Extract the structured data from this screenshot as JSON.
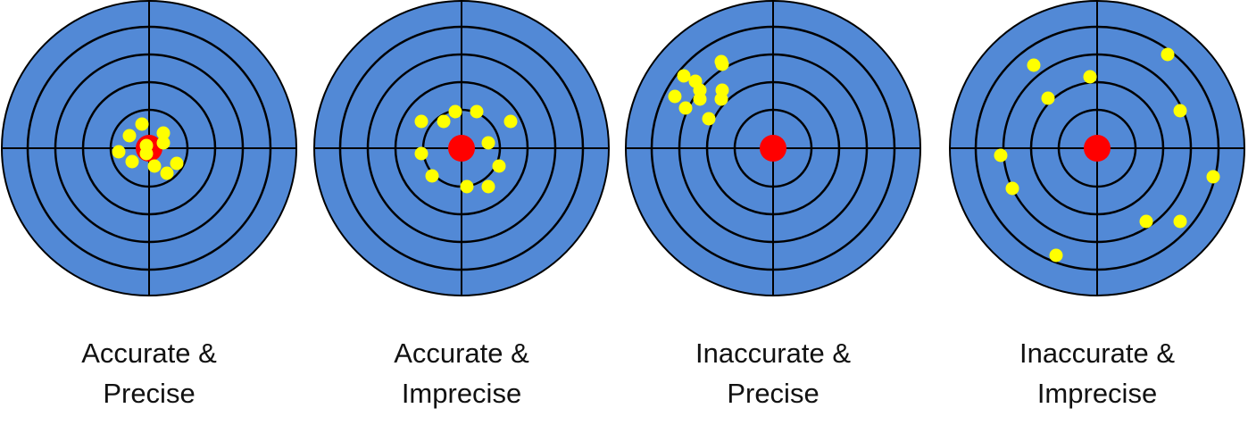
{
  "colors": {
    "target_fill": "#5289d6",
    "ring_stroke": "#000000",
    "bullseye": "#ff0000",
    "hit": "#ffff00"
  },
  "targets": [
    {
      "caption_line1": "Accurate &",
      "caption_line2": "Precise",
      "hits": [
        [
          -8,
          27
        ],
        [
          -22,
          14
        ],
        [
          16,
          17
        ],
        [
          -34,
          -4
        ],
        [
          -3,
          3
        ],
        [
          16,
          6
        ],
        [
          -19,
          -15
        ],
        [
          6,
          -20
        ],
        [
          31,
          -17
        ],
        [
          -3,
          -6
        ],
        [
          20,
          -28
        ]
      ]
    },
    {
      "caption_line1": "Accurate &",
      "caption_line2": "Imprecise",
      "hits": [
        [
          -45,
          30
        ],
        [
          -20,
          30
        ],
        [
          -7,
          41
        ],
        [
          17,
          41
        ],
        [
          55,
          30
        ],
        [
          30,
          6
        ],
        [
          -45,
          -6
        ],
        [
          42,
          -20
        ],
        [
          -33,
          -31
        ],
        [
          6,
          -43
        ],
        [
          30,
          -43
        ]
      ]
    },
    {
      "caption_line1": "Inaccurate &",
      "caption_line2": "Precise",
      "hits": [
        [
          -57,
          94
        ],
        [
          -87,
          75
        ],
        [
          -110,
          58
        ],
        [
          -82,
          65
        ],
        [
          -100,
          81
        ],
        [
          -57,
          65
        ],
        [
          -82,
          55
        ],
        [
          -58,
          97
        ],
        [
          -58,
          55
        ],
        [
          -98,
          45
        ],
        [
          -72,
          33
        ]
      ]
    },
    {
      "caption_line1": "Inaccurate &",
      "caption_line2": "Imprecise",
      "hits": [
        [
          -71,
          93
        ],
        [
          79,
          105
        ],
        [
          -8,
          80
        ],
        [
          -55,
          56
        ],
        [
          93,
          42
        ],
        [
          -108,
          -8
        ],
        [
          130,
          -32
        ],
        [
          -95,
          -45
        ],
        [
          55,
          -82
        ],
        [
          93,
          -82
        ],
        [
          -46,
          -120
        ]
      ]
    }
  ]
}
